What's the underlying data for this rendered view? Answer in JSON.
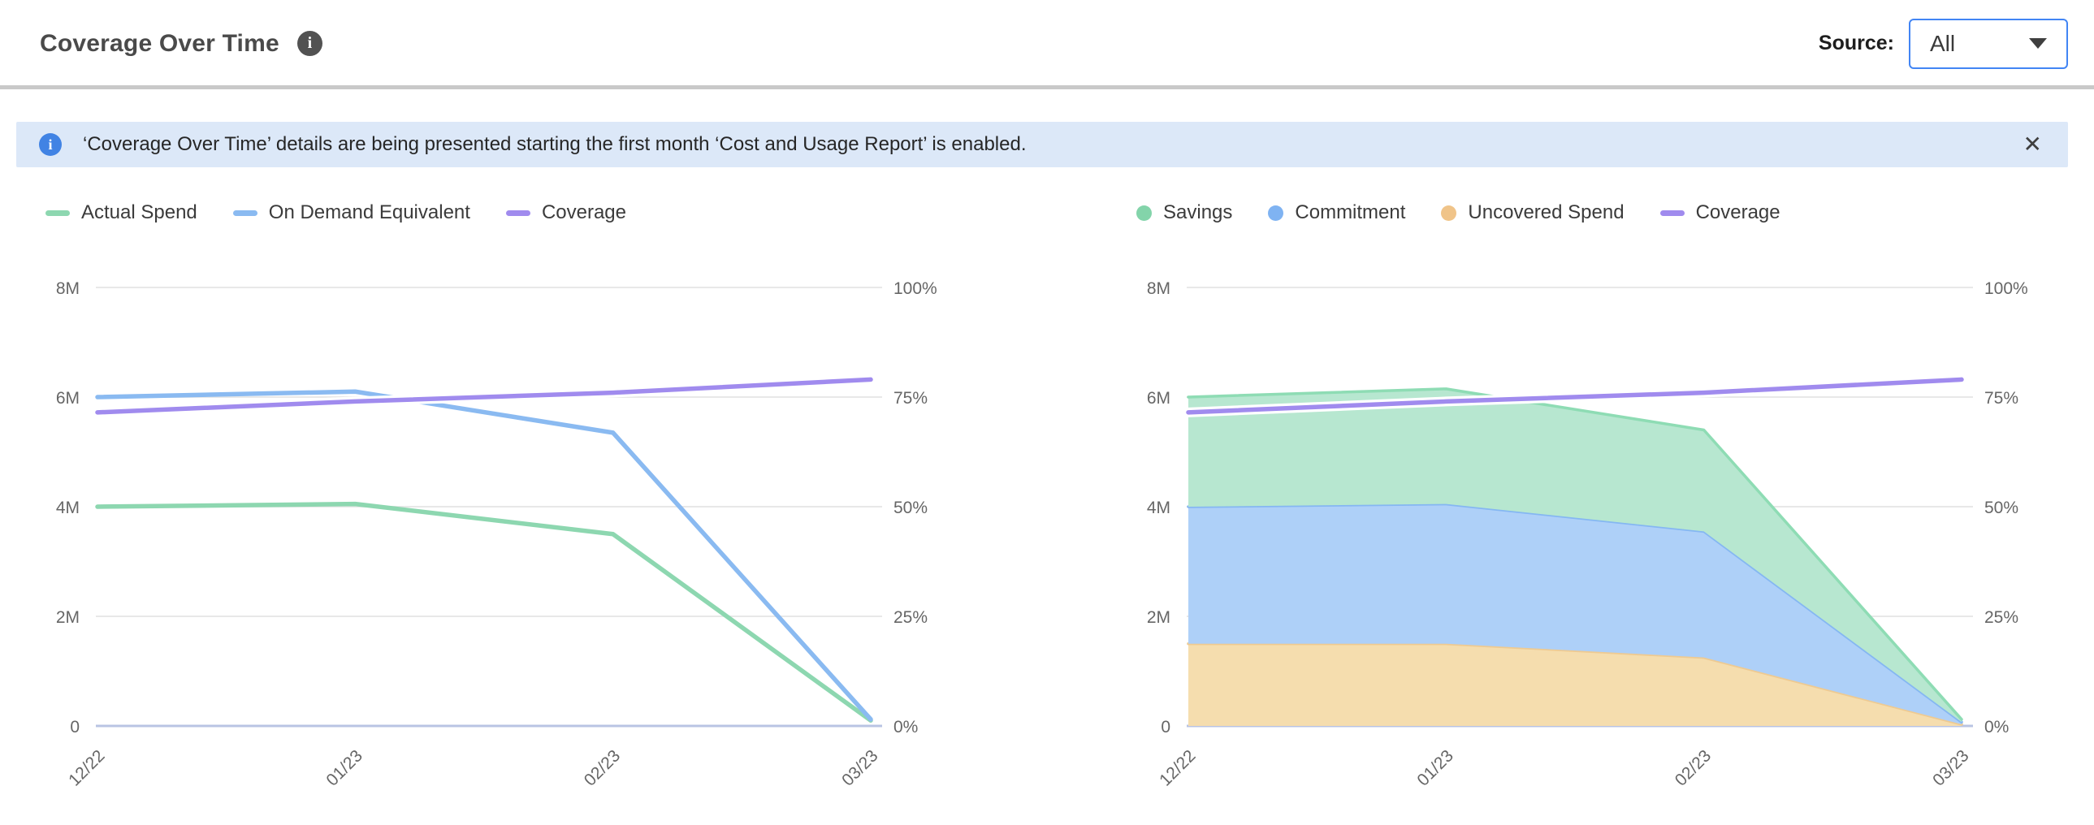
{
  "header": {
    "title": "Coverage Over Time",
    "info_icon_glyph": "i",
    "source_label": "Source:",
    "source_value": "All"
  },
  "banner": {
    "info_icon_glyph": "i",
    "message": "‘Coverage Over Time’ details are being presented starting the first month ‘Cost and Usage Report’ is enabled.",
    "close_icon": "✕"
  },
  "colors": {
    "accent_blue": "#4285f4",
    "banner_bg": "#dce8f8",
    "banner_icon": "#4183e4",
    "grid": "#e8e8e8",
    "zero_line": "#b9c4e3",
    "tick_text": "#666666"
  },
  "chart_data": [
    {
      "id": "left",
      "type": "line",
      "title": "",
      "unit": "millions (left axis), percent (right axis)",
      "categories": [
        "12/22",
        "01/23",
        "02/23",
        "03/23"
      ],
      "left_axis": {
        "min": 0,
        "max": 8,
        "ticks": [
          "0",
          "2M",
          "4M",
          "6M",
          "8M"
        ]
      },
      "right_axis": {
        "min": 0,
        "max": 100,
        "ticks": [
          "0%",
          "25%",
          "50%",
          "75%",
          "100%"
        ]
      },
      "grid": true,
      "legend_position": "top-left",
      "series": [
        {
          "name": "Actual Spend",
          "type": "line",
          "axis": "left",
          "marker": "dash",
          "color": "#8dd7b0",
          "values": [
            4.0,
            4.05,
            3.5,
            0.1
          ]
        },
        {
          "name": "On Demand Equivalent",
          "type": "line",
          "axis": "left",
          "marker": "dash",
          "color": "#8abaf1",
          "values": [
            6.0,
            6.1,
            5.35,
            0.12
          ]
        },
        {
          "name": "Coverage",
          "type": "line",
          "axis": "right",
          "marker": "dash",
          "color": "#a08bee",
          "halo": true,
          "values": [
            71.5,
            74,
            76,
            79
          ]
        }
      ]
    },
    {
      "id": "right",
      "type": "area",
      "title": "",
      "unit": "millions (left axis), percent (right axis)",
      "categories": [
        "12/22",
        "01/23",
        "02/23",
        "03/23"
      ],
      "left_axis": {
        "min": 0,
        "max": 8,
        "ticks": [
          "0",
          "2M",
          "4M",
          "6M",
          "8M"
        ]
      },
      "right_axis": {
        "min": 0,
        "max": 100,
        "ticks": [
          "0%",
          "25%",
          "50%",
          "75%",
          "100%"
        ]
      },
      "grid": true,
      "legend_position": "top-left",
      "series": [
        {
          "name": "Savings",
          "type": "area",
          "axis": "left",
          "marker": "dot",
          "stack_index": 2,
          "color": "#b7e7d0",
          "edge": "#8edcb4",
          "legend_color": "#83d4aa",
          "values": [
            2.0,
            2.1,
            1.85,
            0.05
          ]
        },
        {
          "name": "Commitment",
          "type": "area",
          "axis": "left",
          "marker": "dot",
          "stack_index": 1,
          "color": "#aed0f8",
          "edge": "#85b7f2",
          "legend_color": "#7fb3f2",
          "values": [
            2.5,
            2.55,
            2.3,
            0.04
          ]
        },
        {
          "name": "Uncovered Spend",
          "type": "area",
          "axis": "left",
          "marker": "dot",
          "stack_index": 0,
          "color": "#f5ddae",
          "edge": "#eeca92",
          "legend_color": "#f0c489",
          "values": [
            1.5,
            1.5,
            1.25,
            0.03
          ]
        },
        {
          "name": "Coverage",
          "type": "line",
          "axis": "right",
          "marker": "dash",
          "color": "#a08bee",
          "halo": true,
          "values": [
            71.5,
            74,
            76,
            79
          ]
        }
      ]
    }
  ]
}
